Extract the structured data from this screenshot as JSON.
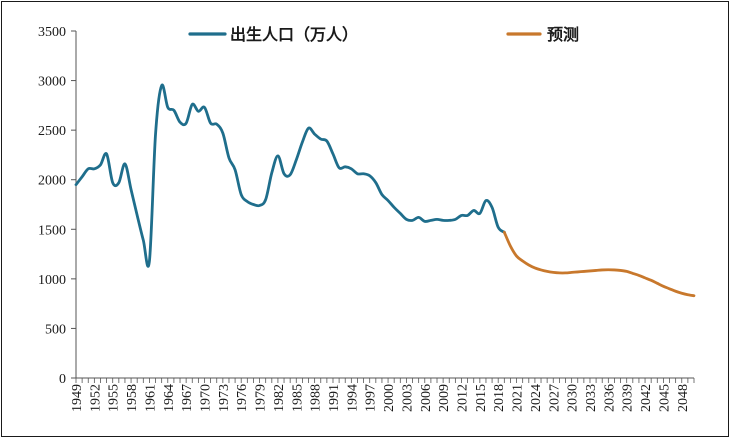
{
  "chart_data": {
    "type": "line",
    "title": "",
    "xlabel": "",
    "ylabel": "",
    "ylim": [
      0,
      3500
    ],
    "yticks": [
      0,
      500,
      1000,
      1500,
      2000,
      2500,
      3000,
      3500
    ],
    "xlim": [
      1949,
      2050
    ],
    "xticks": [
      1949,
      1952,
      1955,
      1958,
      1961,
      1964,
      1967,
      1970,
      1973,
      1976,
      1979,
      1982,
      1985,
      1988,
      1991,
      1994,
      1997,
      2000,
      2003,
      2006,
      2009,
      2012,
      2015,
      2018,
      2021,
      2024,
      2027,
      2030,
      2033,
      2036,
      2039,
      2042,
      2045,
      2048
    ],
    "grid": false,
    "legend": "top",
    "series": [
      {
        "name": "出生人口（万人）",
        "color": "#1f6e8c",
        "x": [
          1949,
          1950,
          1951,
          1952,
          1953,
          1954,
          1955,
          1956,
          1957,
          1958,
          1959,
          1960,
          1961,
          1962,
          1963,
          1964,
          1965,
          1966,
          1967,
          1968,
          1969,
          1970,
          1971,
          1972,
          1973,
          1974,
          1975,
          1976,
          1977,
          1978,
          1979,
          1980,
          1981,
          1982,
          1983,
          1984,
          1985,
          1986,
          1987,
          1988,
          1989,
          1990,
          1991,
          1992,
          1993,
          1994,
          1995,
          1996,
          1997,
          1998,
          1999,
          2000,
          2001,
          2002,
          2003,
          2004,
          2005,
          2006,
          2007,
          2008,
          2009,
          2010,
          2011,
          2012,
          2013,
          2014,
          2015,
          2016,
          2017,
          2018,
          2019
        ],
        "values": [
          1950,
          2030,
          2110,
          2110,
          2150,
          2260,
          1970,
          1970,
          2160,
          1900,
          1640,
          1390,
          1180,
          2460,
          2950,
          2730,
          2700,
          2580,
          2570,
          2760,
          2690,
          2730,
          2570,
          2560,
          2470,
          2220,
          2100,
          1850,
          1780,
          1750,
          1740,
          1800,
          2070,
          2240,
          2060,
          2050,
          2200,
          2380,
          2520,
          2460,
          2410,
          2390,
          2260,
          2120,
          2130,
          2110,
          2060,
          2060,
          2040,
          1970,
          1850,
          1790,
          1720,
          1660,
          1600,
          1590,
          1620,
          1580,
          1590,
          1600,
          1590,
          1590,
          1600,
          1640,
          1640,
          1690,
          1660,
          1790,
          1720,
          1520,
          1470
        ]
      },
      {
        "name": "预测",
        "color": "#c8782c",
        "x": [
          2019,
          2020,
          2021,
          2022,
          2023,
          2024,
          2025,
          2026,
          2027,
          2028,
          2029,
          2030,
          2031,
          2032,
          2033,
          2034,
          2035,
          2036,
          2037,
          2038,
          2039,
          2040,
          2041,
          2042,
          2043,
          2044,
          2045,
          2046,
          2047,
          2048,
          2049,
          2050
        ],
        "values": [
          1470,
          1330,
          1230,
          1180,
          1140,
          1110,
          1090,
          1075,
          1065,
          1060,
          1060,
          1065,
          1070,
          1075,
          1080,
          1085,
          1090,
          1092,
          1090,
          1085,
          1075,
          1055,
          1035,
          1010,
          985,
          955,
          925,
          900,
          875,
          855,
          840,
          830
        ]
      }
    ]
  }
}
